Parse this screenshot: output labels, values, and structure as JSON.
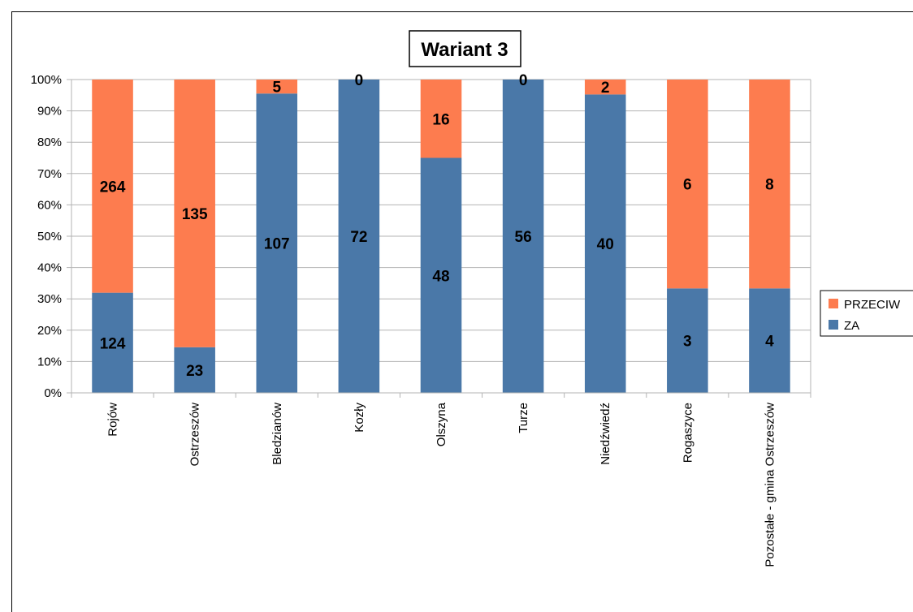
{
  "chart_data": {
    "type": "bar",
    "stacked": "percent",
    "title": "Wariant 3",
    "xlabel": "",
    "ylabel": "",
    "ylim": [
      0,
      100
    ],
    "yticks": [
      "0%",
      "10%",
      "20%",
      "30%",
      "40%",
      "50%",
      "60%",
      "70%",
      "80%",
      "90%",
      "100%"
    ],
    "categories": [
      "Rojów",
      "Ostrzeszów",
      "Bledzianów",
      "Kozły",
      "Olszyna",
      "Turze",
      "Niedźwiedź",
      "Rogaszyce",
      "Pozostałe - gmina Ostrzeszów"
    ],
    "series": [
      {
        "name": "ZA",
        "color": "#4a78a8",
        "values": [
          124,
          23,
          107,
          72,
          48,
          56,
          40,
          3,
          4
        ]
      },
      {
        "name": "PRZECIW",
        "color": "#fd7c4f",
        "values": [
          264,
          135,
          5,
          0,
          16,
          0,
          2,
          6,
          8
        ]
      }
    ],
    "grid": true,
    "legend": "right",
    "legend_order": [
      "PRZECIW",
      "ZA"
    ]
  }
}
